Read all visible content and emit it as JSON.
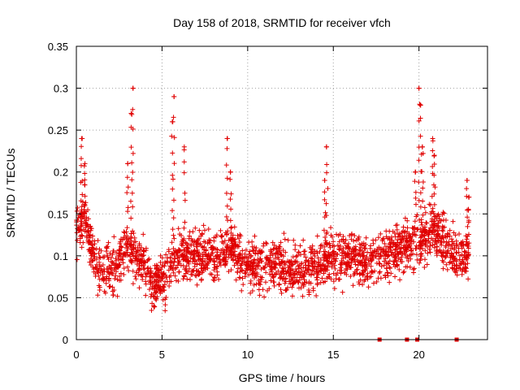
{
  "chart_data": {
    "type": "scatter",
    "title": "Day 158 of 2018, SRMTID for receiver vfch",
    "xlabel": "GPS time / hours",
    "ylabel": "SRMTID / TECUs",
    "xlim": [
      0,
      24
    ],
    "ylim": [
      0,
      0.35
    ],
    "xticks": [
      0,
      5,
      10,
      15,
      20
    ],
    "xtick_labels": [
      "0",
      "5",
      "10",
      "15",
      "20"
    ],
    "yticks": [
      0,
      0.05,
      0.1,
      0.15,
      0.2,
      0.25,
      0.3,
      0.35
    ],
    "ytick_labels": [
      "0",
      "0.05",
      "0.1",
      "0.15",
      "0.2",
      "0.25",
      "0.3",
      "0.35"
    ],
    "grid": true,
    "marker": "plus",
    "color": "#e00000",
    "zero_markers_x": [
      17.7,
      19.3,
      19.9,
      22.2
    ],
    "series": [
      {
        "name": "SRMTID",
        "trend": [
          [
            0.0,
            0.13
          ],
          [
            0.5,
            0.15
          ],
          [
            1.0,
            0.1
          ],
          [
            1.5,
            0.08
          ],
          [
            2.0,
            0.08
          ],
          [
            2.5,
            0.09
          ],
          [
            3.0,
            0.11
          ],
          [
            3.5,
            0.1
          ],
          [
            4.0,
            0.09
          ],
          [
            4.5,
            0.06
          ],
          [
            5.0,
            0.07
          ],
          [
            5.5,
            0.09
          ],
          [
            6.0,
            0.1
          ],
          [
            6.5,
            0.1
          ],
          [
            7.0,
            0.1
          ],
          [
            8.0,
            0.1
          ],
          [
            9.0,
            0.11
          ],
          [
            10.0,
            0.09
          ],
          [
            11.0,
            0.09
          ],
          [
            12.0,
            0.09
          ],
          [
            13.0,
            0.08
          ],
          [
            14.0,
            0.09
          ],
          [
            15.0,
            0.1
          ],
          [
            16.0,
            0.1
          ],
          [
            17.0,
            0.09
          ],
          [
            18.0,
            0.1
          ],
          [
            19.0,
            0.11
          ],
          [
            20.0,
            0.12
          ],
          [
            21.0,
            0.13
          ],
          [
            22.0,
            0.1
          ],
          [
            22.8,
            0.1
          ]
        ],
        "peaks": [
          [
            0.3,
            0.24
          ],
          [
            0.5,
            0.21
          ],
          [
            3.0,
            0.21
          ],
          [
            3.2,
            0.27
          ],
          [
            3.3,
            0.3
          ],
          [
            5.6,
            0.26
          ],
          [
            5.7,
            0.29
          ],
          [
            6.3,
            0.23
          ],
          [
            8.8,
            0.24
          ],
          [
            9.0,
            0.2
          ],
          [
            14.6,
            0.23
          ],
          [
            14.5,
            0.19
          ],
          [
            20.0,
            0.3
          ],
          [
            20.1,
            0.28
          ],
          [
            20.2,
            0.23
          ],
          [
            20.8,
            0.24
          ],
          [
            20.9,
            0.22
          ],
          [
            19.8,
            0.2
          ],
          [
            22.8,
            0.19
          ],
          [
            22.9,
            0.17
          ]
        ],
        "x_range": [
          0.0,
          22.9
        ],
        "point_count": 2200
      }
    ]
  }
}
